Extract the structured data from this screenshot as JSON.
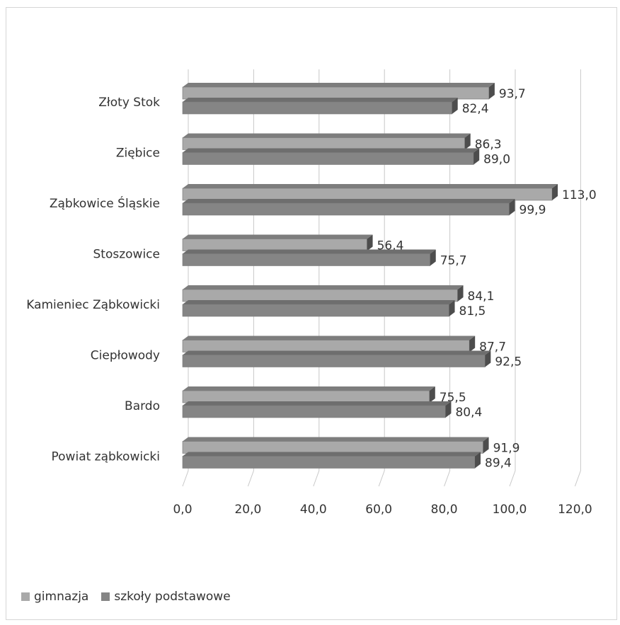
{
  "chart_data": {
    "type": "bar",
    "orientation": "horizontal",
    "categories": [
      "Złoty Stok",
      "Ziębice",
      "Ząbkowice Śląskie",
      "Stoszowice",
      "Kamieniec Ząbkowicki",
      "Ciepłowody",
      "Bardo",
      "Powiat ząbkowicki"
    ],
    "series": [
      {
        "name": "gimnazja",
        "values": [
          93.7,
          86.3,
          113.0,
          56.4,
          84.1,
          87.7,
          75.5,
          91.9
        ],
        "labels": [
          "93,7",
          "86,3",
          "113,0",
          "56,4",
          "84,1",
          "87,7",
          "75,5",
          "91,9"
        ],
        "color": "#a9a9a9"
      },
      {
        "name": "szkoły podstawowe",
        "values": [
          82.4,
          89.0,
          99.9,
          75.7,
          81.5,
          92.5,
          80.4,
          89.4
        ],
        "labels": [
          "82,4",
          "89,0",
          "99,9",
          "75,7",
          "81,5",
          "92,5",
          "80,4",
          "89,4"
        ],
        "color": "#858585"
      }
    ],
    "xlim": [
      0,
      120
    ],
    "x_ticks": [
      0,
      20,
      40,
      60,
      80,
      100,
      120
    ],
    "x_tick_labels": [
      "0,0",
      "20,0",
      "40,0",
      "60,0",
      "80,0",
      "100,0",
      "120,0"
    ],
    "grid": true,
    "legend_position": "bottom-left",
    "style": "3d"
  }
}
